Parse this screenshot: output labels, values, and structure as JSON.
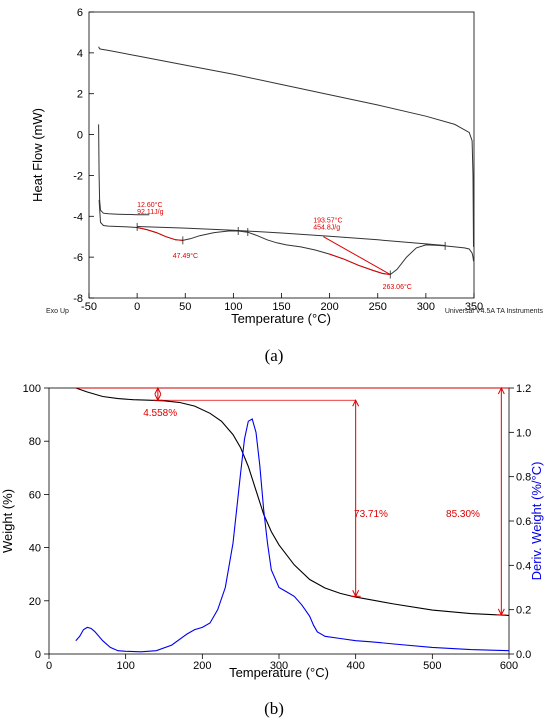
{
  "chart_data": [
    {
      "panel": "a",
      "type": "line",
      "xlabel": "Temperature (°C)",
      "ylabel": "Heat Flow (mW)",
      "xlim": [
        -50,
        350
      ],
      "ylim": [
        -8,
        6
      ],
      "xticks": [
        -50,
        0,
        50,
        100,
        150,
        200,
        250,
        300,
        350
      ],
      "yticks": [
        -8,
        -6,
        -4,
        -2,
        0,
        2,
        4,
        6
      ],
      "grid": false,
      "footer_left": "Exo Up",
      "footer_right": "Universal V4.5A TA Instruments",
      "caption": "(a)",
      "series": [
        {
          "color": "#333333",
          "x": [
            -40,
            -39,
            -37,
            -30,
            0,
            50,
            100,
            150,
            200,
            250,
            300,
            330,
            345,
            348,
            349,
            349.5
          ],
          "y": [
            4.3,
            4.2,
            4.18,
            4.12,
            3.85,
            3.4,
            2.95,
            2.45,
            1.95,
            1.45,
            0.9,
            0.5,
            0.1,
            -0.3,
            -2,
            -5.5
          ]
        },
        {
          "color": "#333333",
          "x": [
            -40,
            -39.5,
            -39,
            -38,
            -35,
            -30,
            -20,
            0,
            12.6
          ],
          "y": [
            0.5,
            -2,
            -3.2,
            -3.7,
            -3.85,
            -3.88,
            -3.9,
            -3.92,
            -3.92
          ]
        },
        {
          "color": "#333333",
          "x": [
            -39.5,
            -38,
            -35,
            -30,
            -20,
            -10,
            0,
            10,
            20,
            30,
            40,
            47.5,
            55,
            65,
            80,
            95,
            105,
            115,
            125,
            135,
            145,
            155,
            170,
            185,
            200,
            215,
            230,
            245,
            255,
            263,
            270,
            280,
            290,
            300,
            310,
            320,
            330,
            340,
            345,
            348,
            349,
            349.5
          ],
          "y": [
            -3.2,
            -4.3,
            -4.45,
            -4.48,
            -4.5,
            -4.52,
            -4.55,
            -4.65,
            -4.8,
            -5.0,
            -5.15,
            -5.18,
            -5.1,
            -4.95,
            -4.8,
            -4.72,
            -4.72,
            -4.78,
            -4.95,
            -5.15,
            -5.3,
            -5.4,
            -5.5,
            -5.65,
            -5.85,
            -6.1,
            -6.4,
            -6.65,
            -6.8,
            -6.85,
            -6.6,
            -6.0,
            -5.55,
            -5.4,
            -5.42,
            -5.45,
            -5.5,
            -5.55,
            -5.6,
            -5.8,
            -6.0,
            -6.2
          ]
        },
        {
          "color": "#333333",
          "x": [
            0,
            50,
            100,
            150,
            200,
            250,
            300,
            320
          ],
          "y": [
            -4.5,
            -4.58,
            -4.68,
            -4.82,
            -4.98,
            -5.15,
            -5.35,
            -5.43
          ]
        }
      ],
      "highlights": [
        {
          "color": "#e00000",
          "x": [
            0,
            10,
            20,
            30,
            40,
            47.5
          ],
          "y": [
            -4.55,
            -4.65,
            -4.8,
            -5.0,
            -5.15,
            -5.18
          ]
        },
        {
          "color": "#e00000",
          "x": [
            200,
            215,
            230,
            245,
            255,
            263
          ],
          "y": [
            -5.85,
            -6.1,
            -6.4,
            -6.65,
            -6.8,
            -6.85
          ]
        },
        {
          "color": "#e00000",
          "x": [
            193.57,
            263
          ],
          "y": [
            -5.0,
            -6.85
          ]
        }
      ],
      "markers": [
        {
          "x": 0,
          "y": -4.52
        },
        {
          "x": 105,
          "y": -4.72
        },
        {
          "x": 115,
          "y": -4.77
        },
        {
          "x": 320,
          "y": -5.45
        },
        {
          "x": 47.5,
          "y": -5.18
        },
        {
          "x": 263,
          "y": -6.85
        }
      ],
      "annotations": [
        {
          "text": "12.60°C",
          "x": 0,
          "y": -3.55
        },
        {
          "text": "92.11J/g",
          "x": 0,
          "y": -3.9
        },
        {
          "text": "47.49°C",
          "x": 37,
          "y": -6.05
        },
        {
          "text": "193.57°C",
          "x": 183,
          "y": -4.3
        },
        {
          "text": "454.8J/g",
          "x": 183,
          "y": -4.65
        },
        {
          "text": "263.06°C",
          "x": 255,
          "y": -7.55
        }
      ]
    },
    {
      "panel": "b",
      "type": "line",
      "xlabel": "Temperature (°C)",
      "ylabel": "Weight (%)",
      "y2label": "Deriv. Weight (%/°C)",
      "xlim": [
        0,
        600
      ],
      "ylim": [
        0,
        100
      ],
      "y2lim": [
        0,
        1.2
      ],
      "xticks": [
        0,
        100,
        200,
        300,
        400,
        500,
        600
      ],
      "yticks": [
        0,
        20,
        40,
        60,
        80,
        100
      ],
      "y2ticks": [
        0.0,
        0.2,
        0.4,
        0.6,
        0.8,
        1.0,
        1.2
      ],
      "grid": false,
      "caption": "(b)",
      "series": [
        {
          "color": "#000000",
          "axis": "left",
          "x": [
            35,
            50,
            70,
            90,
            110,
            130,
            150,
            170,
            190,
            210,
            225,
            240,
            250,
            260,
            270,
            280,
            290,
            300,
            320,
            340,
            360,
            380,
            400,
            450,
            500,
            550,
            600
          ],
          "y": [
            100,
            98.5,
            96.8,
            96,
            95.6,
            95.4,
            95.2,
            94.6,
            93.2,
            90.5,
            87.5,
            82.5,
            77.5,
            70.5,
            61.5,
            52.5,
            46,
            41,
            33.5,
            28,
            24.8,
            22.8,
            21.4,
            18.8,
            16.5,
            15.2,
            14.5
          ]
        },
        {
          "color": "#0000ee",
          "axis": "right",
          "x": [
            35,
            40,
            45,
            50,
            55,
            60,
            70,
            80,
            90,
            100,
            120,
            140,
            160,
            180,
            190,
            200,
            210,
            220,
            230,
            240,
            250,
            255,
            260,
            265,
            270,
            275,
            280,
            285,
            290,
            300,
            310,
            320,
            330,
            340,
            345,
            350,
            360,
            380,
            400,
            420,
            450,
            500,
            550,
            600
          ],
          "y": [
            0.06,
            0.08,
            0.11,
            0.12,
            0.115,
            0.1,
            0.06,
            0.03,
            0.015,
            0.012,
            0.01,
            0.015,
            0.04,
            0.09,
            0.11,
            0.12,
            0.14,
            0.2,
            0.3,
            0.5,
            0.82,
            0.97,
            1.05,
            1.06,
            1.0,
            0.85,
            0.65,
            0.5,
            0.38,
            0.3,
            0.28,
            0.26,
            0.22,
            0.17,
            0.13,
            0.1,
            0.08,
            0.07,
            0.06,
            0.055,
            0.045,
            0.03,
            0.02,
            0.015
          ]
        }
      ],
      "annotations": [
        {
          "text": "4.558%",
          "x": 145,
          "y": 89.5
        },
        {
          "text": "73.71%",
          "x": 420,
          "y": 51.5
        },
        {
          "text": "85.30%",
          "x": 540,
          "y": 51.5
        }
      ],
      "measures": [
        {
          "type": "step",
          "x": 142,
          "y_top": 100,
          "y_bottom": 95.4
        },
        {
          "type": "step",
          "x": 400,
          "y_top": 95.4,
          "y_bottom": 21.7
        },
        {
          "type": "step",
          "x": 590,
          "y_top": 100,
          "y_bottom": 14.7
        }
      ]
    }
  ]
}
